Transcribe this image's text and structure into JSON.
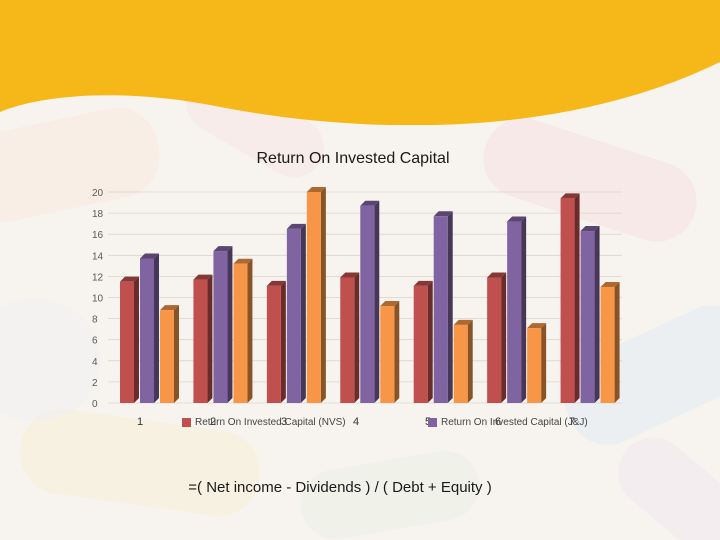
{
  "chart_data": {
    "type": "bar",
    "title": "Return On Invested Capital",
    "categories": [
      "1",
      "2",
      "3",
      "4",
      "5",
      "6",
      "7"
    ],
    "series": [
      {
        "name": "",
        "color": "#c0504d",
        "values": [
          11.5,
          11.7,
          11.1,
          11.9,
          11.1,
          11.9,
          19.4
        ]
      },
      {
        "name": "Return On Invested Capital (NVS)",
        "color": "#8064a2",
        "values": [
          13.7,
          14.4,
          16.5,
          18.7,
          17.7,
          17.2,
          16.3
        ]
      },
      {
        "name": "Return On Invested Capital (J&J)",
        "color": "#f79646",
        "values": [
          8.8,
          13.2,
          20.0,
          9.2,
          7.4,
          7.1,
          11.0
        ]
      }
    ],
    "ylim": [
      0,
      20
    ],
    "yticks": [
      "0",
      "2",
      "4",
      "6",
      "8",
      "10",
      "12",
      "14",
      "16",
      "18",
      "20"
    ],
    "grid": true,
    "legend": "bottom"
  },
  "formula": "=( Net income - Dividends ) / ( Debt + Equity )",
  "colors": {
    "banner": "#f6b818",
    "axis_text": "#595959"
  }
}
